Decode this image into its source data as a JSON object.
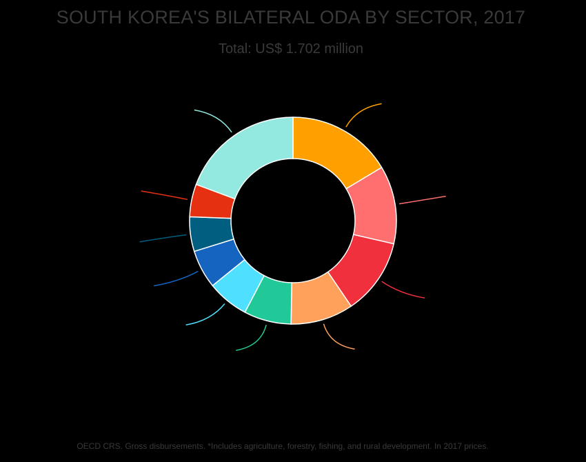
{
  "chart_data": {
    "type": "pie",
    "donut": true,
    "title": "SOUTH KOREA'S BILATERAL ODA BY SECTOR, 2017",
    "subtitle": "Total: US$ 1.702 million",
    "footnote": "OECD CRS. Gross disbursements. *Includes agriculture, forestry, fishing, and rural development. In 2017 prices.",
    "slice_border_color": "#ffffff",
    "slices": [
      {
        "value": 16.4,
        "color": "#FFA000"
      },
      {
        "value": 12.2,
        "color": "#FF6F6F"
      },
      {
        "value": 11.9,
        "color": "#F0303C"
      },
      {
        "value": 9.8,
        "color": "#FFA15A"
      },
      {
        "value": 7.4,
        "color": "#20C997"
      },
      {
        "value": 6.5,
        "color": "#50E0FF"
      },
      {
        "value": 6.0,
        "color": "#1565C0"
      },
      {
        "value": 5.4,
        "color": "#005F80"
      },
      {
        "value": 5.1,
        "color": "#E63012"
      },
      {
        "value": 19.3,
        "color": "#93E9E0"
      }
    ]
  }
}
